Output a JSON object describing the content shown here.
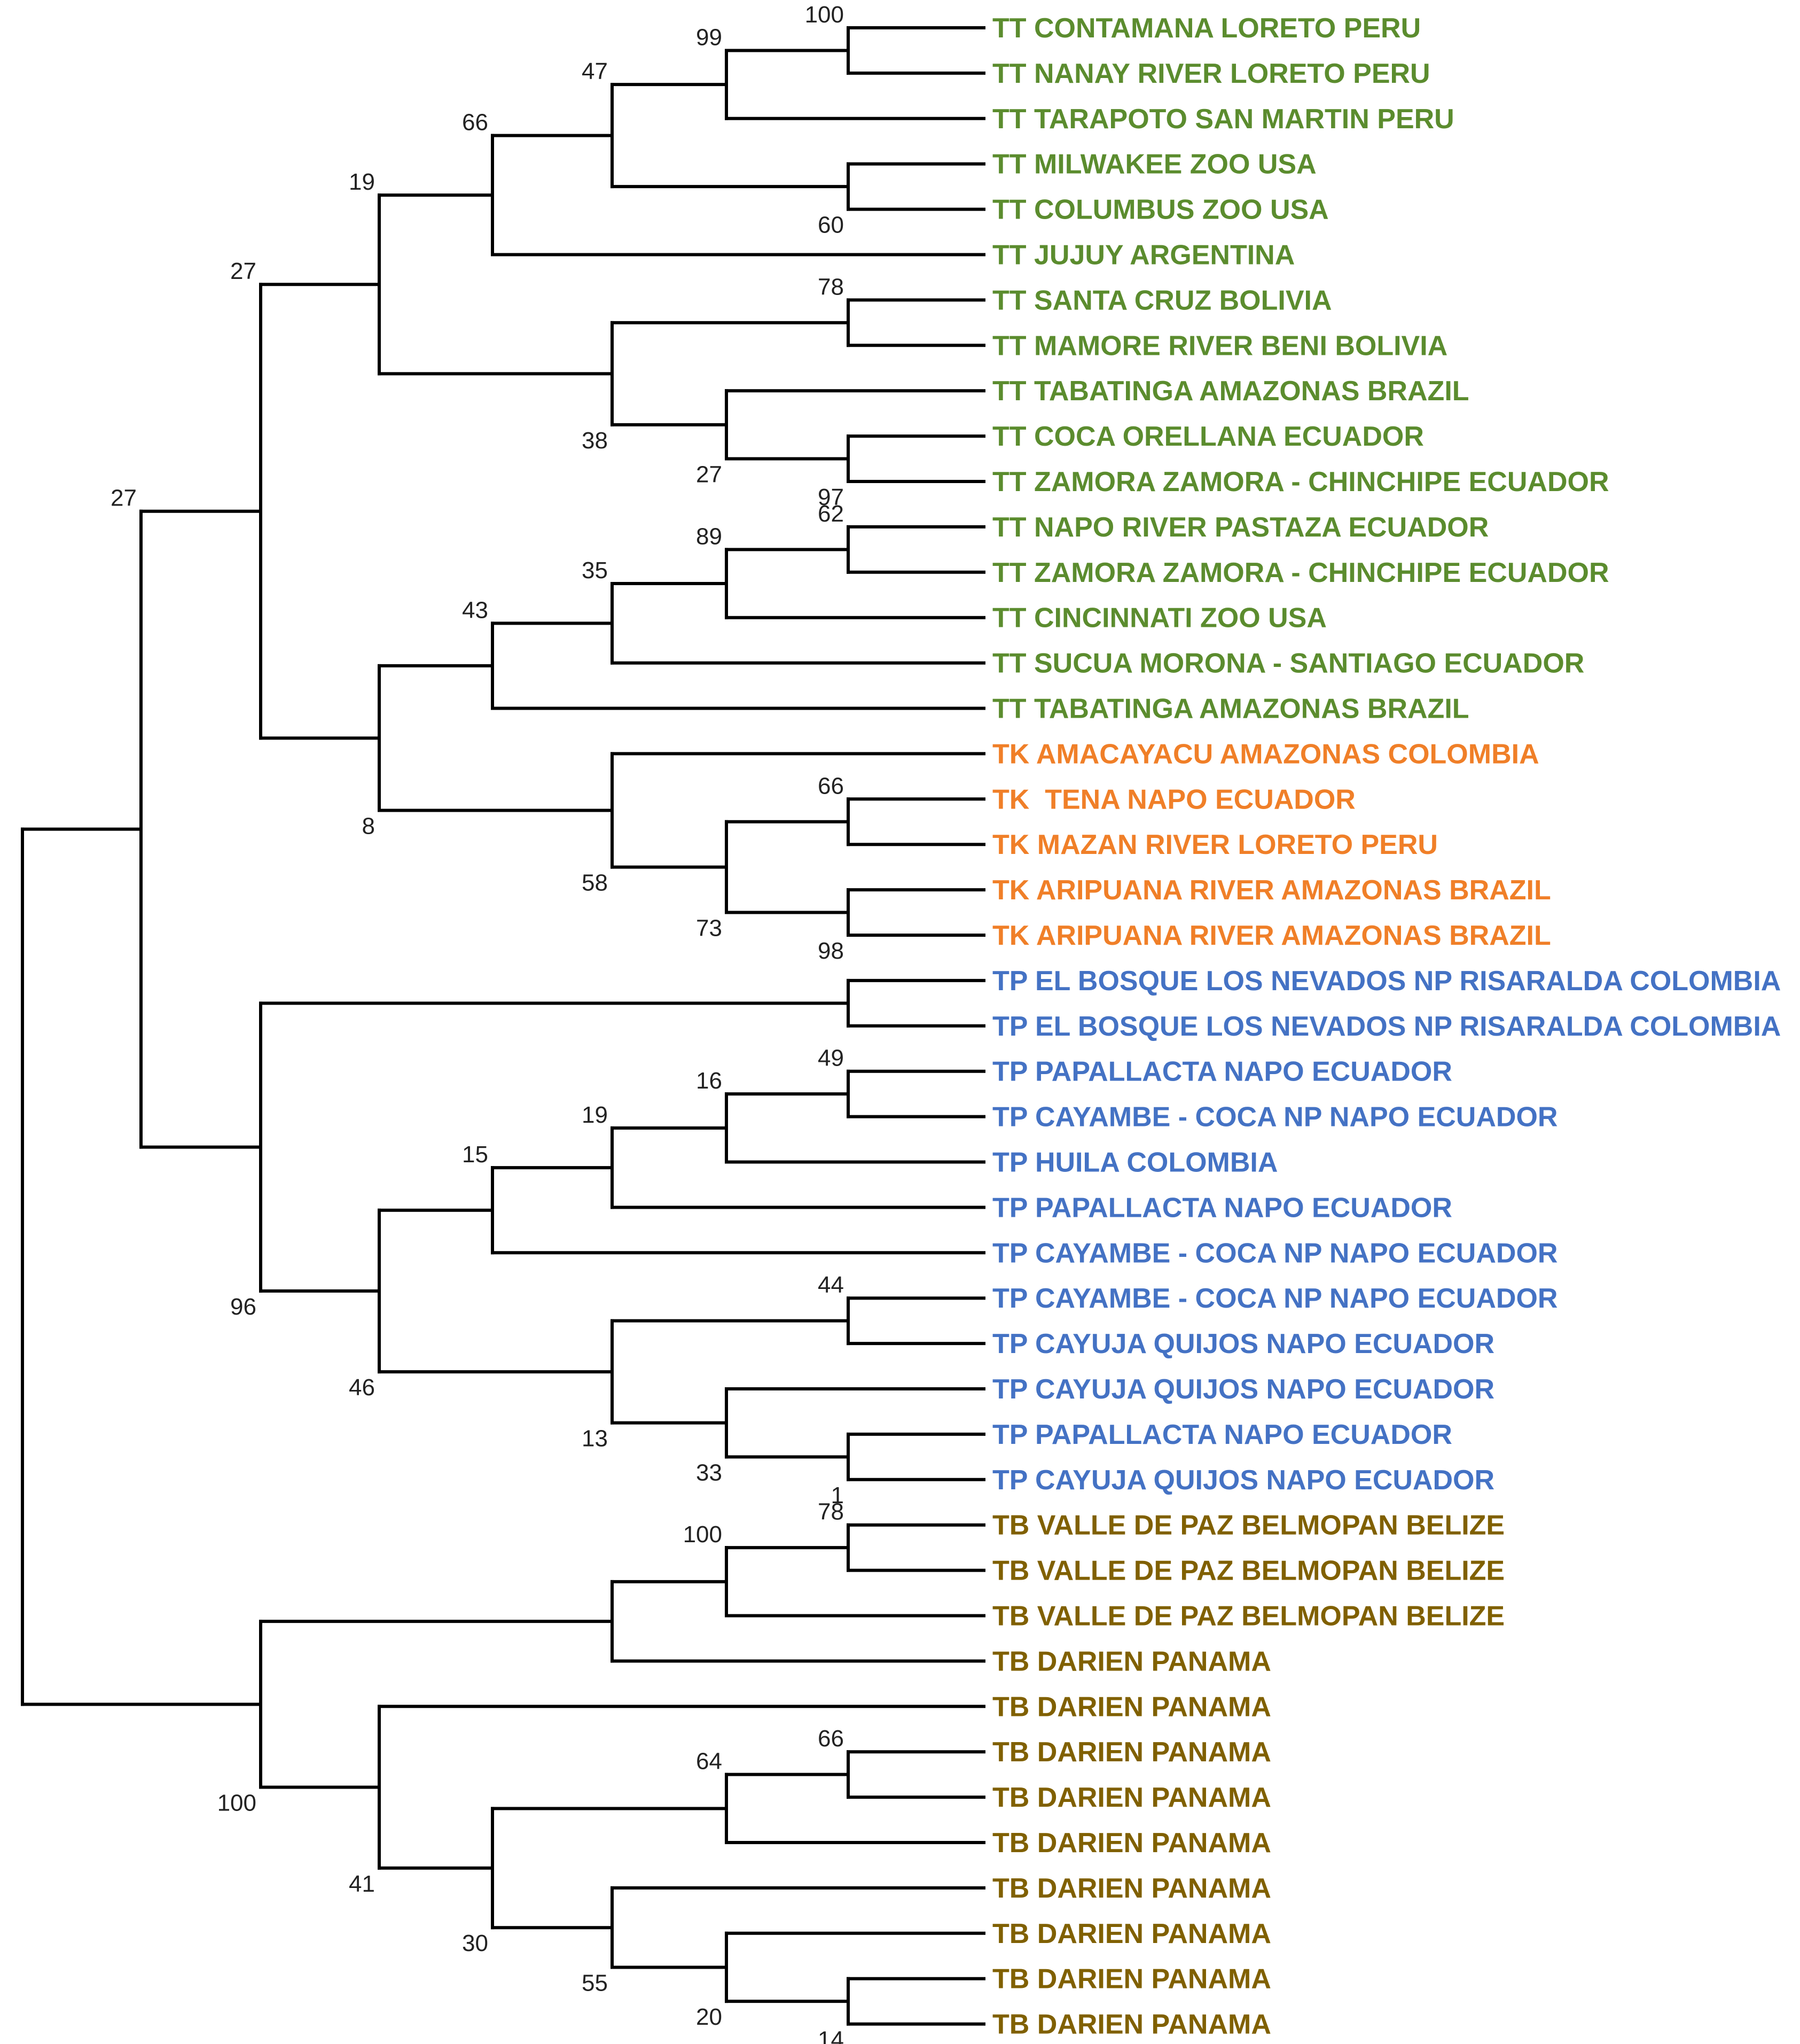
{
  "colors": {
    "TT": "#5b8c2e",
    "TK": "#f07f28",
    "TP": "#4472c4",
    "TB": "#806000"
  },
  "taxa": [
    {
      "label": "TT CONTAMANA LORETO PERU",
      "group": "TT"
    },
    {
      "label": "TT NANAY RIVER LORETO PERU",
      "group": "TT"
    },
    {
      "label": "TT TARAPOTO SAN MARTIN PERU",
      "group": "TT"
    },
    {
      "label": "TT MILWAKEE ZOO USA",
      "group": "TT"
    },
    {
      "label": "TT COLUMBUS ZOO USA",
      "group": "TT"
    },
    {
      "label": "TT JUJUY ARGENTINA",
      "group": "TT"
    },
    {
      "label": "TT SANTA CRUZ BOLIVIA",
      "group": "TT"
    },
    {
      "label": "TT MAMORE RIVER BENI BOLIVIA",
      "group": "TT"
    },
    {
      "label": "TT TABATINGA AMAZONAS BRAZIL",
      "group": "TT"
    },
    {
      "label": "TT COCA ORELLANA ECUADOR",
      "group": "TT"
    },
    {
      "label": "TT ZAMORA ZAMORA - CHINCHIPE ECUADOR",
      "group": "TT"
    },
    {
      "label": "TT NAPO RIVER PASTAZA ECUADOR",
      "group": "TT"
    },
    {
      "label": "TT ZAMORA ZAMORA - CHINCHIPE ECUADOR",
      "group": "TT"
    },
    {
      "label": "TT CINCINNATI ZOO USA",
      "group": "TT"
    },
    {
      "label": "TT SUCUA MORONA - SANTIAGO ECUADOR",
      "group": "TT"
    },
    {
      "label": "TT TABATINGA AMAZONAS BRAZIL",
      "group": "TT"
    },
    {
      "label": "TK AMACAYACU AMAZONAS COLOMBIA",
      "group": "TK"
    },
    {
      "label": "TK  TENA NAPO ECUADOR",
      "group": "TK"
    },
    {
      "label": "TK MAZAN RIVER LORETO PERU",
      "group": "TK"
    },
    {
      "label": "TK ARIPUANA RIVER AMAZONAS BRAZIL",
      "group": "TK"
    },
    {
      "label": "TK ARIPUANA RIVER AMAZONAS BRAZIL",
      "group": "TK"
    },
    {
      "label": "TP EL BOSQUE LOS NEVADOS NP RISARALDA COLOMBIA",
      "group": "TP"
    },
    {
      "label": "TP EL BOSQUE LOS NEVADOS NP RISARALDA COLOMBIA",
      "group": "TP"
    },
    {
      "label": "TP PAPALLACTA NAPO ECUADOR",
      "group": "TP"
    },
    {
      "label": "TP CAYAMBE - COCA NP NAPO ECUADOR",
      "group": "TP"
    },
    {
      "label": "TP HUILA COLOMBIA",
      "group": "TP"
    },
    {
      "label": "TP PAPALLACTA NAPO ECUADOR",
      "group": "TP"
    },
    {
      "label": "TP CAYAMBE - COCA NP NAPO ECUADOR",
      "group": "TP"
    },
    {
      "label": "TP CAYAMBE - COCA NP NAPO ECUADOR",
      "group": "TP"
    },
    {
      "label": "TP CAYUJA QUIJOS NAPO ECUADOR",
      "group": "TP"
    },
    {
      "label": "TP CAYUJA QUIJOS NAPO ECUADOR",
      "group": "TP"
    },
    {
      "label": "TP PAPALLACTA NAPO ECUADOR",
      "group": "TP"
    },
    {
      "label": "TP CAYUJA QUIJOS NAPO ECUADOR",
      "group": "TP"
    },
    {
      "label": "TB VALLE DE PAZ BELMOPAN BELIZE",
      "group": "TB"
    },
    {
      "label": "TB VALLE DE PAZ BELMOPAN BELIZE",
      "group": "TB"
    },
    {
      "label": "TB VALLE DE PAZ BELMOPAN BELIZE",
      "group": "TB"
    },
    {
      "label": "TB DARIEN PANAMA",
      "group": "TB"
    },
    {
      "label": "TB DARIEN PANAMA",
      "group": "TB"
    },
    {
      "label": "TB DARIEN PANAMA",
      "group": "TB"
    },
    {
      "label": "TB DARIEN PANAMA",
      "group": "TB"
    },
    {
      "label": "TB DARIEN PANAMA",
      "group": "TB"
    },
    {
      "label": "TB DARIEN PANAMA",
      "group": "TB"
    },
    {
      "label": "TB DARIEN PANAMA",
      "group": "TB"
    },
    {
      "label": "TB DARIEN PANAMA",
      "group": "TB"
    },
    {
      "label": "TB DARIEN PANAMA",
      "group": "TB"
    }
  ],
  "bootstrap_values": [
    "100",
    "99",
    "47",
    "60",
    "66",
    "19",
    "78",
    "97",
    "27",
    "38",
    "27",
    "62",
    "89",
    "35",
    "43",
    "66",
    "98",
    "73",
    "58",
    "8",
    "49",
    "16",
    "19",
    "15",
    "44",
    "1",
    "33",
    "13",
    "46",
    "96",
    "78",
    "100",
    "66",
    "64",
    "14",
    "20",
    "55",
    "30",
    "41",
    "100"
  ]
}
